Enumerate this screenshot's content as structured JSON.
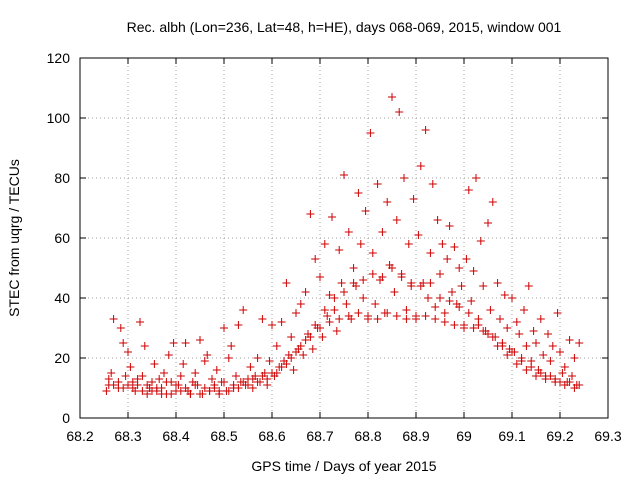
{
  "chart_data": {
    "type": "scatter",
    "title": "Rec. albh (Lon=236, Lat=48, h=HE), days 068-069, 2015, window 001",
    "xlabel": "GPS time / Days of year 2015",
    "ylabel": "STEC from uqrg / TECUs",
    "xlim": [
      68.2,
      69.3
    ],
    "ylim": [
      0,
      120
    ],
    "xticks": [
      "68.2",
      "68.3",
      "68.4",
      "68.5",
      "68.6",
      "68.7",
      "68.8",
      "68.9",
      "69",
      "69.1",
      "69.2",
      "69.3"
    ],
    "yticks": [
      "0",
      "20",
      "40",
      "60",
      "80",
      "100",
      "120"
    ],
    "grid": true,
    "marker": "+",
    "color": "#cc0000",
    "series": [
      {
        "points": [
          [
            68.255,
            9
          ],
          [
            68.26,
            11
          ],
          [
            68.265,
            15
          ],
          [
            68.27,
            33
          ],
          [
            68.28,
            10
          ],
          [
            68.285,
            30
          ],
          [
            68.29,
            25
          ],
          [
            68.295,
            14
          ],
          [
            68.3,
            22
          ],
          [
            68.305,
            17
          ],
          [
            68.31,
            12
          ],
          [
            68.315,
            9
          ],
          [
            68.32,
            11
          ],
          [
            68.325,
            32
          ],
          [
            68.33,
            14
          ],
          [
            68.335,
            24
          ],
          [
            68.34,
            8
          ],
          [
            68.345,
            10
          ],
          [
            68.35,
            12
          ],
          [
            68.355,
            18
          ],
          [
            68.36,
            9
          ],
          [
            68.365,
            13
          ],
          [
            68.37,
            10
          ],
          [
            68.375,
            15
          ],
          [
            68.38,
            8
          ],
          [
            68.385,
            21
          ],
          [
            68.39,
            12
          ],
          [
            68.395,
            25
          ],
          [
            68.4,
            9
          ],
          [
            68.405,
            11
          ],
          [
            68.41,
            14
          ],
          [
            68.415,
            18
          ],
          [
            68.42,
            25
          ],
          [
            68.425,
            9
          ],
          [
            68.43,
            8
          ],
          [
            68.435,
            12
          ],
          [
            68.44,
            15
          ],
          [
            68.445,
            11
          ],
          [
            68.45,
            26
          ],
          [
            68.455,
            8
          ],
          [
            68.46,
            19
          ],
          [
            68.465,
            21
          ],
          [
            68.47,
            9
          ],
          [
            68.475,
            13
          ],
          [
            68.48,
            10
          ],
          [
            68.485,
            16
          ],
          [
            68.49,
            8
          ],
          [
            68.495,
            12
          ],
          [
            68.5,
            30
          ],
          [
            68.505,
            9
          ],
          [
            68.51,
            20
          ],
          [
            68.515,
            24
          ],
          [
            68.52,
            10
          ],
          [
            68.525,
            14
          ],
          [
            68.53,
            31
          ],
          [
            68.535,
            12
          ],
          [
            68.54,
            36
          ],
          [
            68.545,
            11
          ],
          [
            68.55,
            13
          ],
          [
            68.555,
            17
          ],
          [
            68.56,
            10
          ],
          [
            68.565,
            14
          ],
          [
            68.57,
            20
          ],
          [
            68.575,
            12
          ],
          [
            68.58,
            33
          ],
          [
            68.585,
            15
          ],
          [
            68.59,
            11
          ],
          [
            68.595,
            19
          ],
          [
            68.6,
            31
          ],
          [
            68.605,
            14
          ],
          [
            68.61,
            24
          ],
          [
            68.615,
            17
          ],
          [
            68.62,
            32
          ],
          [
            68.625,
            19
          ],
          [
            68.63,
            45
          ],
          [
            68.635,
            21
          ],
          [
            68.64,
            27
          ],
          [
            68.645,
            16
          ],
          [
            68.65,
            35
          ],
          [
            68.655,
            23
          ],
          [
            68.66,
            38
          ],
          [
            68.665,
            21
          ],
          [
            68.67,
            42
          ],
          [
            68.675,
            28
          ],
          [
            68.68,
            68
          ],
          [
            68.685,
            23
          ],
          [
            68.69,
            53
          ],
          [
            68.695,
            30
          ],
          [
            68.7,
            47
          ],
          [
            68.705,
            27
          ],
          [
            68.71,
            58
          ],
          [
            68.715,
            34
          ],
          [
            68.72,
            41
          ],
          [
            68.725,
            67
          ],
          [
            68.73,
            36
          ],
          [
            68.735,
            29
          ],
          [
            68.74,
            56
          ],
          [
            68.745,
            45
          ],
          [
            68.75,
            81
          ],
          [
            68.755,
            38
          ],
          [
            68.76,
            62
          ],
          [
            68.765,
            33
          ],
          [
            68.77,
            50
          ],
          [
            68.775,
            44
          ],
          [
            68.78,
            75
          ],
          [
            68.785,
            58
          ],
          [
            68.79,
            40
          ],
          [
            68.795,
            69
          ],
          [
            68.8,
            33
          ],
          [
            68.805,
            95
          ],
          [
            68.81,
            55
          ],
          [
            68.815,
            38
          ],
          [
            68.82,
            78
          ],
          [
            68.825,
            46
          ],
          [
            68.83,
            62
          ],
          [
            68.835,
            35
          ],
          [
            68.84,
            72
          ],
          [
            68.845,
            51
          ],
          [
            68.85,
            107
          ],
          [
            68.855,
            42
          ],
          [
            68.86,
            66
          ],
          [
            68.865,
            102
          ],
          [
            68.87,
            48
          ],
          [
            68.875,
            80
          ],
          [
            68.88,
            36
          ],
          [
            68.885,
            58
          ],
          [
            68.89,
            44
          ],
          [
            68.895,
            73
          ],
          [
            68.9,
            34
          ],
          [
            68.905,
            61
          ],
          [
            68.91,
            84
          ],
          [
            68.915,
            45
          ],
          [
            68.92,
            96
          ],
          [
            68.925,
            40
          ],
          [
            68.93,
            55
          ],
          [
            68.935,
            78
          ],
          [
            68.94,
            37
          ],
          [
            68.945,
            66
          ],
          [
            68.95,
            48
          ],
          [
            68.955,
            58
          ],
          [
            68.96,
            35
          ],
          [
            68.965,
            53
          ],
          [
            68.97,
            64
          ],
          [
            68.975,
            42
          ],
          [
            68.98,
            57
          ],
          [
            68.985,
            38
          ],
          [
            68.99,
            50
          ],
          [
            68.995,
            44
          ],
          [
            69.0,
            30
          ],
          [
            69.005,
            53
          ],
          [
            69.01,
            76
          ],
          [
            69.015,
            39
          ],
          [
            69.02,
            49
          ],
          [
            69.025,
            80
          ],
          [
            69.03,
            33
          ],
          [
            69.035,
            59
          ],
          [
            69.04,
            44
          ],
          [
            69.045,
            29
          ],
          [
            69.05,
            65
          ],
          [
            69.055,
            36
          ],
          [
            69.06,
            72
          ],
          [
            69.065,
            27
          ],
          [
            69.07,
            45
          ],
          [
            69.075,
            33
          ],
          [
            69.08,
            25
          ],
          [
            69.085,
            41
          ],
          [
            69.09,
            30
          ],
          [
            69.095,
            23
          ],
          [
            69.1,
            40
          ],
          [
            69.105,
            22
          ],
          [
            69.11,
            32
          ],
          [
            69.115,
            28
          ],
          [
            69.12,
            20
          ],
          [
            69.125,
            36
          ],
          [
            69.13,
            24
          ],
          [
            69.135,
            44
          ],
          [
            69.14,
            19
          ],
          [
            69.145,
            29
          ],
          [
            69.15,
            25
          ],
          [
            69.155,
            16
          ],
          [
            69.16,
            33
          ],
          [
            69.165,
            21
          ],
          [
            69.17,
            14
          ],
          [
            69.175,
            28
          ],
          [
            69.18,
            19
          ],
          [
            69.185,
            24
          ],
          [
            69.19,
            13
          ],
          [
            69.195,
            35
          ],
          [
            69.2,
            22
          ],
          [
            69.205,
            15
          ],
          [
            69.21,
            17
          ],
          [
            69.215,
            12
          ],
          [
            69.22,
            26
          ],
          [
            69.225,
            14
          ],
          [
            69.23,
            20
          ],
          [
            69.235,
            11
          ],
          [
            69.24,
            25
          ],
          [
            68.26,
            13
          ],
          [
            68.28,
            12
          ],
          [
            68.3,
            11
          ],
          [
            68.32,
            13
          ],
          [
            68.34,
            11
          ],
          [
            68.36,
            10
          ],
          [
            68.38,
            12
          ],
          [
            68.4,
            11
          ],
          [
            68.42,
            10
          ],
          [
            68.44,
            11
          ],
          [
            68.46,
            10
          ],
          [
            68.48,
            11
          ],
          [
            68.5,
            12
          ],
          [
            68.52,
            11
          ],
          [
            68.54,
            12
          ],
          [
            68.56,
            13
          ],
          [
            68.58,
            14
          ],
          [
            68.6,
            15
          ],
          [
            68.62,
            17
          ],
          [
            68.64,
            20
          ],
          [
            68.66,
            24
          ],
          [
            68.68,
            27
          ],
          [
            68.7,
            30
          ],
          [
            68.72,
            32
          ],
          [
            68.74,
            33
          ],
          [
            68.76,
            34
          ],
          [
            68.78,
            35
          ],
          [
            68.8,
            34
          ],
          [
            68.82,
            33
          ],
          [
            68.84,
            35
          ],
          [
            68.86,
            34
          ],
          [
            68.88,
            33
          ],
          [
            68.9,
            33
          ],
          [
            68.92,
            34
          ],
          [
            68.94,
            33
          ],
          [
            68.96,
            32
          ],
          [
            68.98,
            31
          ],
          [
            69.0,
            31
          ],
          [
            69.02,
            30
          ],
          [
            69.04,
            29
          ],
          [
            69.06,
            27
          ],
          [
            69.08,
            24
          ],
          [
            69.1,
            22
          ],
          [
            69.12,
            19
          ],
          [
            69.14,
            17
          ],
          [
            69.16,
            15
          ],
          [
            69.18,
            14
          ],
          [
            69.2,
            12
          ],
          [
            69.22,
            12
          ],
          [
            69.24,
            11
          ],
          [
            68.27,
            11
          ],
          [
            68.29,
            10
          ],
          [
            68.31,
            10
          ],
          [
            68.33,
            9
          ],
          [
            68.35,
            9
          ],
          [
            68.37,
            8
          ],
          [
            68.39,
            8
          ],
          [
            68.41,
            9
          ],
          [
            68.43,
            8
          ],
          [
            68.45,
            8
          ],
          [
            68.47,
            9
          ],
          [
            68.49,
            9
          ],
          [
            68.51,
            9
          ],
          [
            68.53,
            10
          ],
          [
            68.55,
            11
          ],
          [
            68.57,
            12
          ],
          [
            68.59,
            13
          ],
          [
            68.61,
            15
          ],
          [
            68.63,
            18
          ],
          [
            68.65,
            22
          ],
          [
            68.67,
            26
          ],
          [
            68.69,
            31
          ],
          [
            68.71,
            36
          ],
          [
            68.73,
            40
          ],
          [
            68.75,
            42
          ],
          [
            68.77,
            45
          ],
          [
            68.79,
            46
          ],
          [
            68.81,
            48
          ],
          [
            68.83,
            47
          ],
          [
            68.85,
            50
          ],
          [
            68.87,
            47
          ],
          [
            68.89,
            45
          ],
          [
            68.91,
            44
          ],
          [
            68.93,
            45
          ],
          [
            68.95,
            40
          ],
          [
            68.97,
            39
          ],
          [
            68.99,
            37
          ],
          [
            69.01,
            35
          ],
          [
            69.03,
            31
          ],
          [
            69.05,
            28
          ],
          [
            69.07,
            24
          ],
          [
            69.09,
            21
          ],
          [
            69.11,
            18
          ],
          [
            69.13,
            16
          ],
          [
            69.15,
            14
          ],
          [
            69.17,
            13
          ],
          [
            69.19,
            12
          ],
          [
            69.21,
            11
          ],
          [
            69.23,
            10
          ]
        ]
      }
    ]
  }
}
